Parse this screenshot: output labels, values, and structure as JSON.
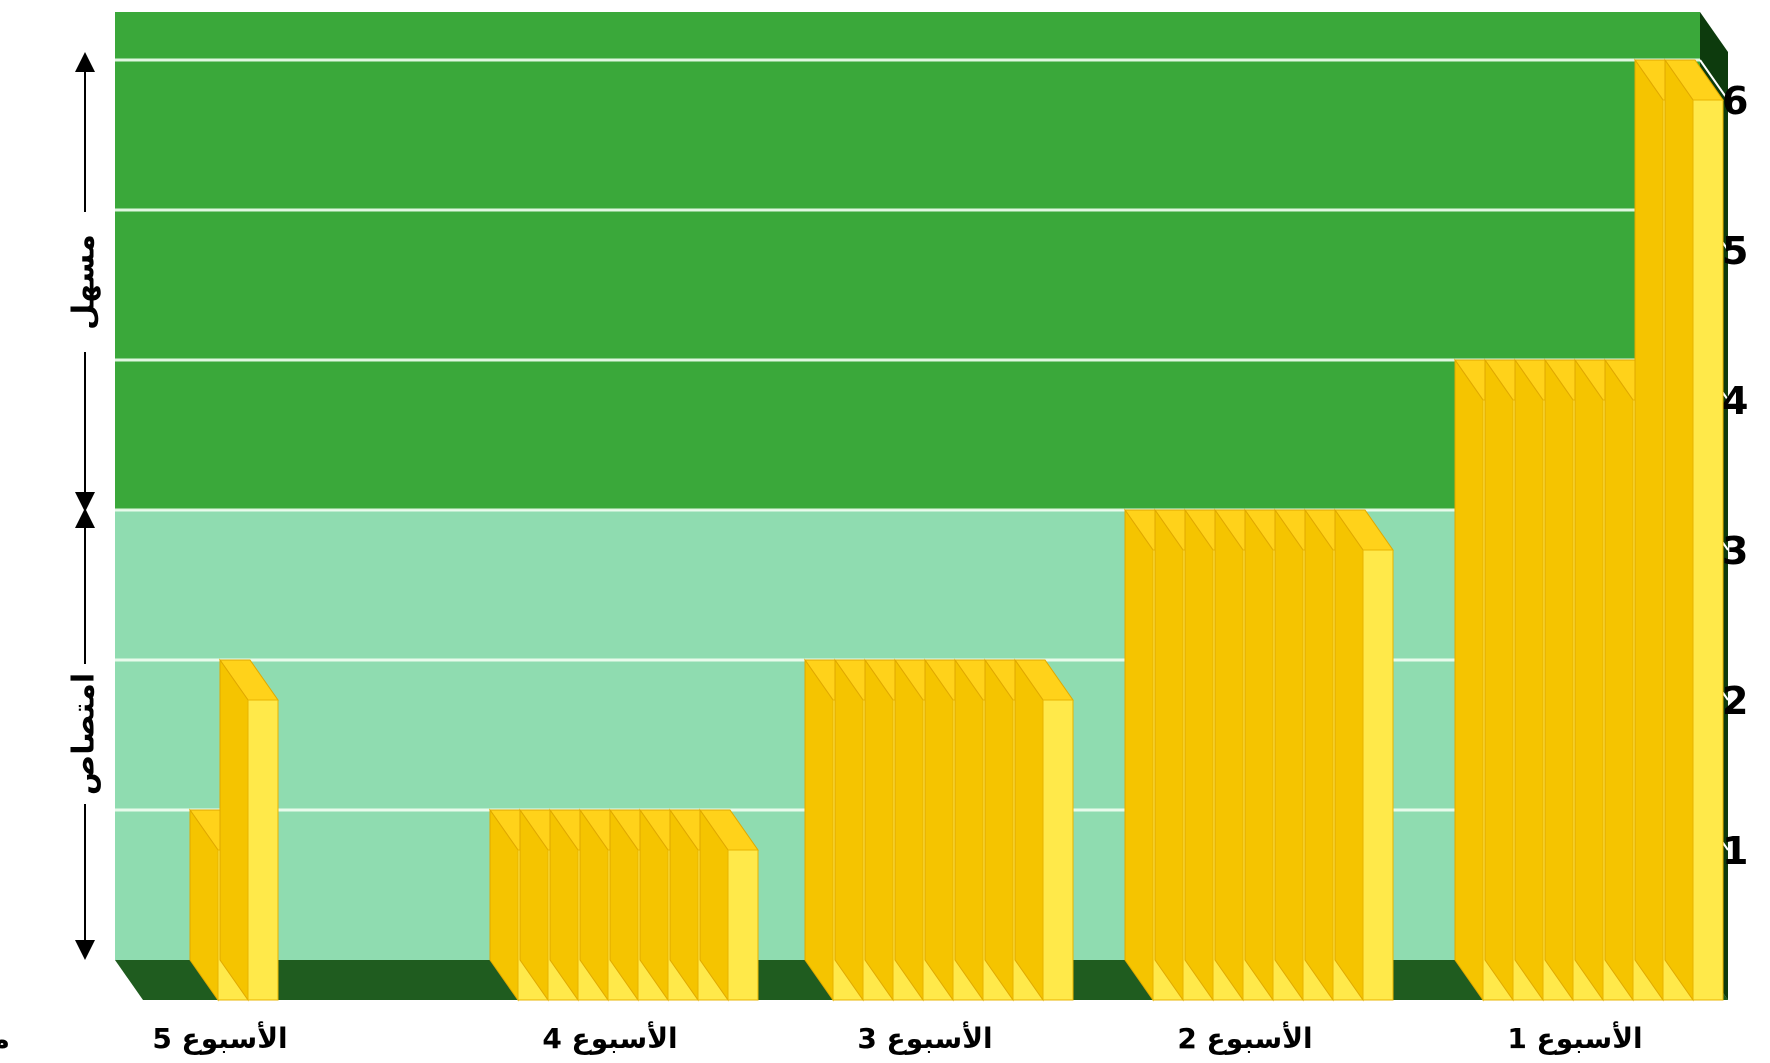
{
  "chart_data": {
    "type": "bar",
    "x_title": "مدة العلاج",
    "categories": [
      "الأسبوع 5",
      "الأسبوع 4",
      "الأسبوع 3",
      "الأسبوع 2",
      "الأسبوع 1"
    ],
    "y_ticks": [
      1,
      2,
      3,
      4,
      5,
      6
    ],
    "ylim": [
      0,
      6
    ],
    "grid": true,
    "bar_groups": [
      {
        "category": "الأسبوع 5",
        "values": [
          1,
          2
        ]
      },
      {
        "category": "الأسبوع 4",
        "values": [
          1,
          1,
          1,
          1,
          1,
          1,
          1,
          1
        ]
      },
      {
        "category": "الأسبوع 3",
        "values": [
          2,
          2,
          2,
          2,
          2,
          2,
          2,
          2
        ]
      },
      {
        "category": "الأسبوع 2",
        "values": [
          3,
          3,
          3,
          3,
          3,
          3,
          3,
          3
        ]
      },
      {
        "category": "الأسبوع 1",
        "values": [
          4,
          4,
          4,
          4,
          4,
          4,
          6,
          6
        ]
      }
    ],
    "zones": [
      {
        "label": "امتصاص",
        "from": 0,
        "to": 3,
        "color": "#8fdcb0"
      },
      {
        "label": "مسهل",
        "from": 3,
        "to": 6,
        "color": "#3aa83a"
      }
    ],
    "colors": {
      "bar_front": "#ffe94a",
      "bar_side": "#f5c400",
      "bar_top": "#ffd21a",
      "floor": "#1f5c1f",
      "axis_side": "#0d3b0d"
    }
  }
}
